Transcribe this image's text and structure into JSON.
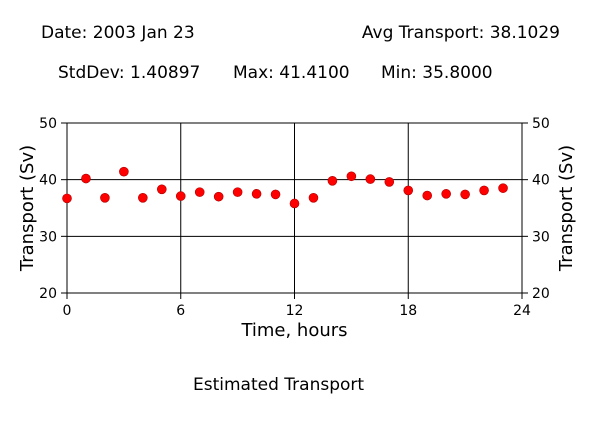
{
  "header": {
    "date_text": "Date: 2003 Jan 23",
    "avg_text": "Avg Transport: 38.1029",
    "stddev_text": "StdDev: 1.40897",
    "max_text": "Max: 41.4100",
    "min_text": "Min: 35.8000"
  },
  "caption": "Estimated Transport",
  "chart_data": {
    "type": "scatter",
    "xlabel": "Time, hours",
    "ylabel": "Transport (Sv)",
    "y2label": "Transport (Sv)",
    "xlim": [
      0,
      24
    ],
    "ylim": [
      20,
      50
    ],
    "xticks": [
      0,
      6,
      12,
      18,
      24
    ],
    "yticks": [
      20,
      30,
      40,
      50
    ],
    "grid": true,
    "marker_color": "#ff0000",
    "x": [
      0,
      1,
      2,
      3,
      4,
      5,
      6,
      7,
      8,
      9,
      10,
      11,
      12,
      13,
      14,
      15,
      16,
      17,
      18,
      19,
      20,
      21,
      22,
      23
    ],
    "y": [
      36.7,
      40.2,
      36.8,
      41.41,
      36.8,
      38.3,
      37.1,
      37.8,
      37.0,
      37.8,
      37.5,
      37.4,
      35.8,
      36.8,
      39.8,
      40.6,
      40.1,
      39.6,
      38.1,
      37.2,
      37.5,
      37.4,
      38.1,
      38.5
    ]
  }
}
